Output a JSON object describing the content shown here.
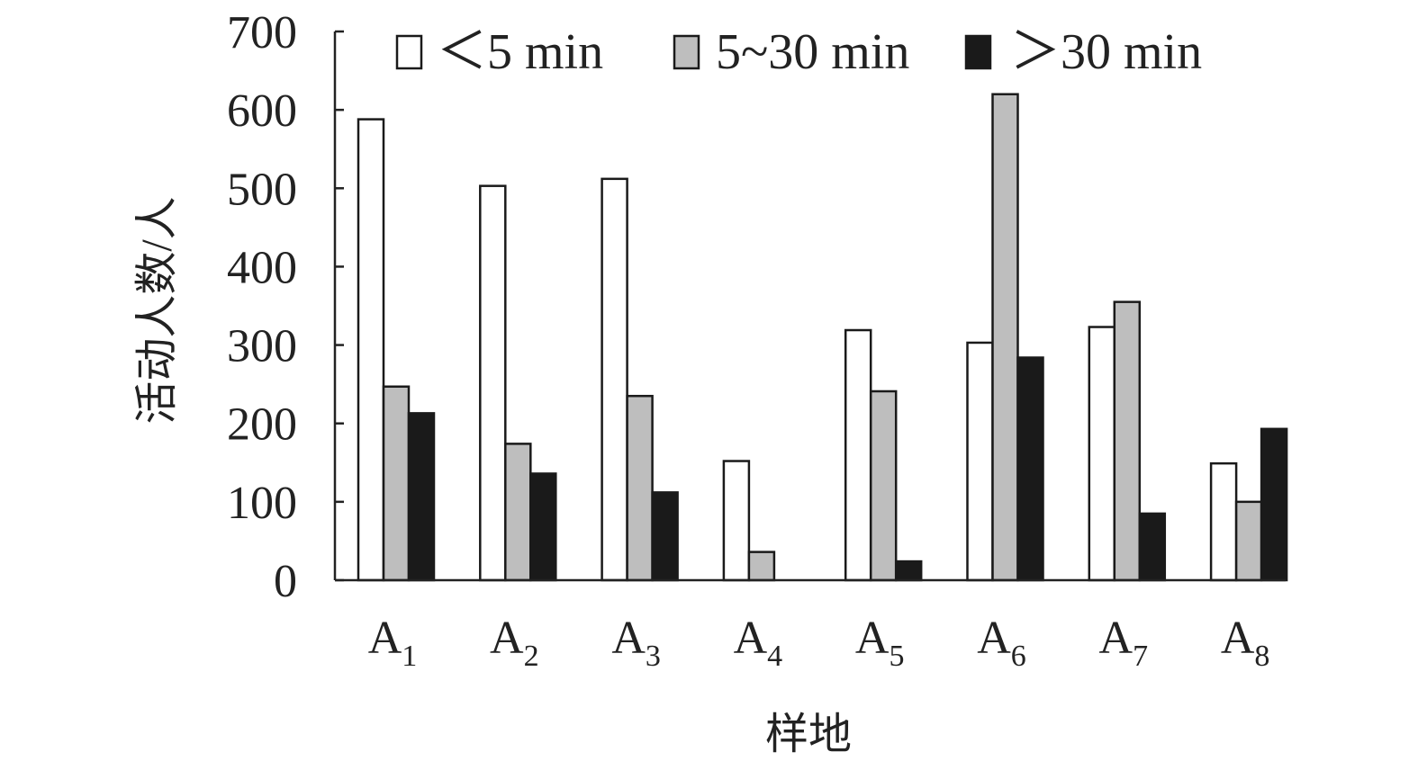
{
  "chart_data": {
    "type": "bar",
    "title": "",
    "xlabel": "样地",
    "ylabel": "活动人数/人",
    "ylim": [
      0,
      700
    ],
    "yticks": [
      "0",
      "100",
      "200",
      "300",
      "400",
      "500",
      "600",
      "700"
    ],
    "categories": [
      {
        "main": "A",
        "sub": "1"
      },
      {
        "main": "A",
        "sub": "2"
      },
      {
        "main": "A",
        "sub": "3"
      },
      {
        "main": "A",
        "sub": "4"
      },
      {
        "main": "A",
        "sub": "5"
      },
      {
        "main": "A",
        "sub": "6"
      },
      {
        "main": "A",
        "sub": "7"
      },
      {
        "main": "A",
        "sub": "8"
      }
    ],
    "series": [
      {
        "name": "＜5 min",
        "color": "#ffffff",
        "values": [
          588,
          503,
          512,
          152,
          319,
          303,
          323,
          149
        ]
      },
      {
        "name": "5~30 min",
        "color": "#bebebe",
        "values": [
          247,
          174,
          235,
          36,
          241,
          620,
          355,
          100
        ]
      },
      {
        "name": "＞30 min",
        "color": "#1a1a1a",
        "values": [
          213,
          136,
          112,
          0,
          24,
          284,
          85,
          193
        ]
      }
    ],
    "legend_position": "top",
    "grid": false
  }
}
